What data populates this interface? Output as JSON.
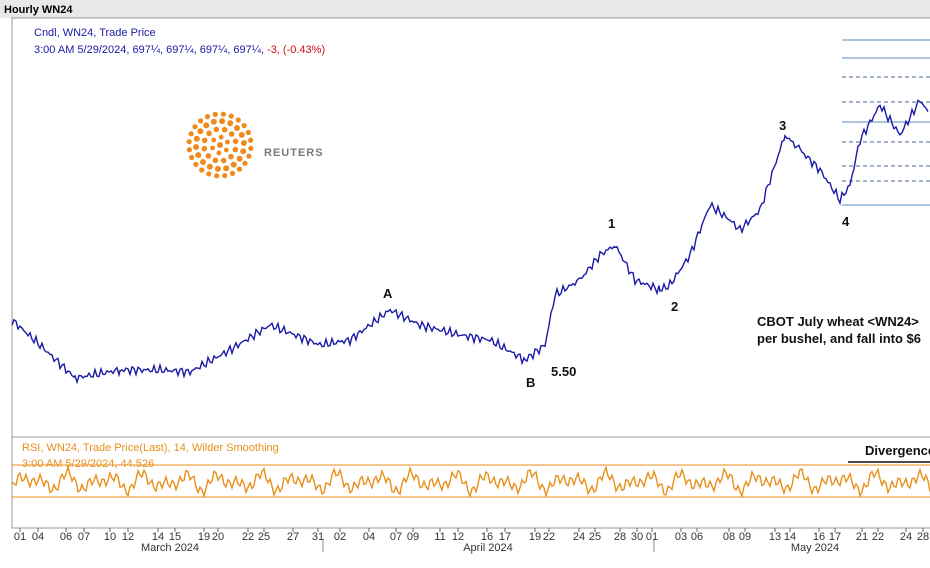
{
  "window_title": "Hourly WN24",
  "legend": {
    "series": "Cndl, WN24, Trade Price",
    "quote": "3:00 AM 5/29/2024, 697¼, 697¼, 697¼, 697¼,",
    "change": "-3, (-0.43%)"
  },
  "logo": "REUTERS",
  "wave_labels": [
    "A",
    "B",
    "1",
    "2",
    "3",
    "4"
  ],
  "price_note": "5.50",
  "annotation": [
    "CBOT July wheat <WN24>",
    "per bushel, and fall into $6"
  ],
  "rsi": {
    "title": "RSI, WN24, Trade Price(Last),  14, Wilder Smoothing",
    "quote": "3:00 AM 5/29/2024, 44.526",
    "note": "Divergence"
  },
  "x_axis": {
    "days": [
      "01",
      "04",
      "06",
      "07",
      "10",
      "12",
      "14",
      "15",
      "19",
      "20",
      "22",
      "25",
      "27",
      "31",
      "02",
      "04",
      "07",
      "09",
      "11",
      "12",
      "16",
      "17",
      "19",
      "22",
      "24",
      "25",
      "28",
      "30",
      "01",
      "03",
      "06",
      "08",
      "09",
      "13",
      "14",
      "16",
      "17",
      "21",
      "22",
      "24",
      "28"
    ],
    "months": [
      "March 2024",
      "April 2024",
      "May 2024"
    ]
  }
}
